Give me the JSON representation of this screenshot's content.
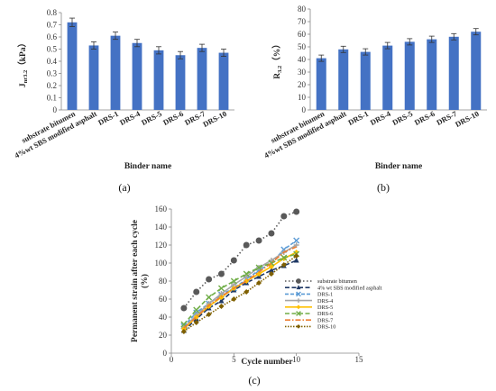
{
  "chart_data": [
    {
      "type": "bar",
      "panel": "(a)",
      "ylabel_main": "J",
      "ylabel_sub": "nr3.2",
      "ylabel_unit": "（kPa）",
      "xlabel": "Binder name",
      "ylim": [
        0,
        0.8
      ],
      "yticks": [
        "0",
        "0.1",
        "0.2",
        "0.3",
        "0.4",
        "0.5",
        "0.6",
        "0.7",
        "0.8"
      ],
      "categories": [
        "substrate bitumen",
        "4%wt SBS modified asphalt",
        "DRS-1",
        "DRS-4",
        "DRS-5",
        "DRS-6",
        "DRS-7",
        "DRS-10"
      ],
      "values": [
        0.72,
        0.53,
        0.61,
        0.55,
        0.49,
        0.45,
        0.51,
        0.47
      ],
      "errors": [
        0.035,
        0.03,
        0.03,
        0.03,
        0.03,
        0.03,
        0.03,
        0.03
      ],
      "color": "#4472C4",
      "grid": false
    },
    {
      "type": "bar",
      "panel": "(b)",
      "ylabel_main": "R",
      "ylabel_sub": "3.2",
      "ylabel_unit": "（%）",
      "xlabel": "Binder name",
      "ylim": [
        0,
        80
      ],
      "yticks": [
        "0",
        "10",
        "20",
        "30",
        "40",
        "50",
        "60",
        "70",
        "80"
      ],
      "categories": [
        "substrate bitumen",
        "4%wt SBS modified asphalt",
        "DRS-1",
        "DRS-4",
        "DRS-5",
        "DRS-6",
        "DRS-7",
        "DRS-10"
      ],
      "values": [
        41,
        48,
        46,
        51,
        54,
        56,
        58,
        62
      ],
      "errors": [
        2.5,
        2.5,
        2.5,
        2.5,
        2.5,
        2.5,
        2.5,
        2.5
      ],
      "color": "#4472C4",
      "grid": false
    },
    {
      "type": "line",
      "panel": "(c)",
      "ylabel": "Permanent strain after each cycle (%)",
      "ylabel_line1": "Permanent strain after each cycle",
      "ylabel_line2": "(%)",
      "xlabel": "Cycle number",
      "xlim": [
        0,
        15
      ],
      "ylim": [
        0,
        160
      ],
      "xticks": [
        "0",
        "5",
        "10",
        "15"
      ],
      "yticks": [
        "0",
        "20",
        "40",
        "60",
        "80",
        "100",
        "120",
        "140",
        "160"
      ],
      "legend_position": "right",
      "series": [
        {
          "name": "substrate bitumen",
          "color": "#595959",
          "dash": "1.5,2.5",
          "marker": "circle",
          "x": [
            1,
            2,
            3,
            4,
            5,
            6,
            7,
            8,
            9,
            10
          ],
          "y": [
            50,
            68,
            82,
            88,
            103,
            120,
            125,
            133,
            152,
            157
          ]
        },
        {
          "name": "4% wt SBS modified asphalt",
          "color": "#1F3864",
          "dash": "5,2.5",
          "marker": "triangle",
          "x": [
            1,
            2,
            3,
            4,
            5,
            6,
            7,
            8,
            9,
            10
          ],
          "y": [
            25,
            38,
            50,
            58,
            70,
            78,
            85,
            92,
            97,
            103
          ]
        },
        {
          "name": "DRS-1",
          "color": "#5B9BD5",
          "dash": "4,2",
          "marker": "x",
          "x": [
            1,
            2,
            3,
            4,
            5,
            6,
            7,
            8,
            9,
            10
          ],
          "y": [
            30,
            45,
            55,
            65,
            72,
            82,
            92,
            100,
            115,
            125
          ]
        },
        {
          "name": "DRS-4",
          "color": "#A6A6A6",
          "dash": "",
          "marker": "plus",
          "x": [
            1,
            2,
            3,
            4,
            5,
            6,
            7,
            8,
            9,
            10
          ],
          "y": [
            28,
            42,
            55,
            66,
            76,
            85,
            95,
            103,
            112,
            120
          ]
        },
        {
          "name": "DRS-5",
          "color": "#FFC000",
          "dash": "",
          "marker": "diamond",
          "x": [
            1,
            2,
            3,
            4,
            5,
            6,
            7,
            8,
            9,
            10
          ],
          "y": [
            27,
            40,
            52,
            62,
            72,
            80,
            88,
            96,
            105,
            112
          ]
        },
        {
          "name": "DRS-6",
          "color": "#70AD47",
          "dash": "5,2.5",
          "marker": "x",
          "x": [
            1,
            2,
            3,
            4,
            5,
            6,
            7,
            8,
            9,
            10
          ],
          "y": [
            32,
            48,
            62,
            72,
            80,
            88,
            95,
            100,
            106,
            110
          ]
        },
        {
          "name": "DRS-7",
          "color": "#ED7D31",
          "dash": "6,2,1.5,2",
          "marker": "none",
          "x": [
            1,
            2,
            3,
            4,
            5,
            6,
            7,
            8,
            9,
            10
          ],
          "y": [
            28,
            40,
            53,
            63,
            72,
            80,
            90,
            100,
            112,
            118
          ]
        },
        {
          "name": "DRS-10",
          "color": "#7F6000",
          "dash": "1.5,1.5",
          "marker": "diamond",
          "x": [
            1,
            2,
            3,
            4,
            5,
            6,
            7,
            8,
            9,
            10
          ],
          "y": [
            24,
            34,
            43,
            52,
            60,
            68,
            78,
            88,
            98,
            108
          ]
        }
      ]
    }
  ]
}
